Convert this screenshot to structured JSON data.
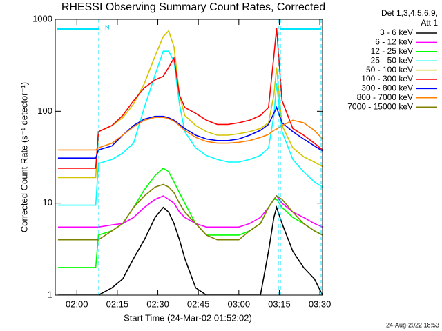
{
  "chart_data": {
    "type": "line",
    "title": "RHESSI Observing Summary Count Rates, Corrected",
    "xlabel": "Start Time (24-Mar-02 01:52:02)",
    "ylabel": "Corrected Count Rate (s⁻¹ detector⁻¹)",
    "legend_title": [
      "Det 1,3,4,5,6,9,",
      "Att 1"
    ],
    "night_label": "N",
    "footer": "24-Aug-2022 18:53",
    "log_y": true,
    "legend": "right",
    "x": [
      "01:53",
      "01:57",
      "02:01",
      "02:05",
      "02:07",
      "02:08",
      "02:13",
      "02:17",
      "02:21",
      "02:25",
      "02:29",
      "02:32",
      "02:34",
      "02:36",
      "02:38",
      "02:40",
      "02:44",
      "02:48",
      "02:52",
      "02:56",
      "03:00",
      "03:04",
      "03:08",
      "03:11",
      "03:13",
      "03:14",
      "03:16",
      "03:20",
      "03:24",
      "03:28",
      "03:31"
    ],
    "xlim": [
      "01:52",
      "03:31"
    ],
    "xticks": [
      "02:00",
      "02:15",
      "02:30",
      "02:45",
      "03:00",
      "03:15",
      "03:30"
    ],
    "ylim": [
      1,
      1000
    ],
    "yticks": [
      1,
      10,
      100,
      1000
    ],
    "series": [
      {
        "name": "3 - 6 keV",
        "color": "#000000",
        "values": [
          1,
          1,
          1,
          1,
          1,
          1,
          1.2,
          1.5,
          2.5,
          4,
          7,
          9,
          8,
          6,
          4,
          2.5,
          1.2,
          1,
          1,
          1,
          1,
          1,
          1,
          3,
          7,
          9,
          6,
          3,
          2,
          1.5,
          1
        ]
      },
      {
        "name": "6 - 12 keV",
        "color": "#ff00ff",
        "values": [
          5.5,
          5.5,
          5.5,
          5.5,
          5.5,
          5.5,
          5.8,
          6,
          7,
          9,
          11,
          12,
          11,
          10,
          8,
          7,
          6,
          5.5,
          5.5,
          5.5,
          5.5,
          6,
          7,
          9,
          11,
          12,
          10,
          8,
          7,
          6,
          5.5
        ]
      },
      {
        "name": "12 - 25 keV",
        "color": "#00ff00",
        "values": [
          2,
          2,
          2,
          2,
          2,
          4.5,
          5,
          6,
          9,
          14,
          20,
          24,
          22,
          17,
          13,
          10,
          6,
          4.5,
          4.5,
          4.5,
          4.5,
          5,
          6,
          9,
          11,
          11,
          9,
          7,
          6,
          5,
          4.5
        ]
      },
      {
        "name": "25 - 50 keV",
        "color": "#00ffff",
        "values": [
          9.5,
          9.5,
          9.5,
          9.5,
          9.5,
          27,
          30,
          35,
          45,
          110,
          250,
          450,
          450,
          350,
          120,
          60,
          40,
          33,
          30,
          28,
          28,
          30,
          33,
          40,
          90,
          200,
          60,
          30,
          22,
          17,
          15
        ]
      },
      {
        "name": "50 - 100 keV",
        "color": "#d4c400",
        "values": [
          19,
          19,
          19,
          19,
          19,
          60,
          70,
          85,
          120,
          200,
          400,
          650,
          750,
          500,
          150,
          90,
          70,
          60,
          55,
          55,
          57,
          60,
          65,
          75,
          150,
          300,
          70,
          40,
          32,
          28,
          25
        ]
      },
      {
        "name": "100 - 300 keV",
        "color": "#ff0000",
        "values": [
          24,
          24,
          24,
          24,
          24,
          60,
          70,
          90,
          130,
          180,
          220,
          240,
          300,
          380,
          150,
          110,
          95,
          80,
          72,
          72,
          75,
          80,
          90,
          110,
          400,
          800,
          130,
          65,
          55,
          45,
          38
        ]
      },
      {
        "name": "300 - 800 keV",
        "color": "#0000ff",
        "values": [
          31,
          31,
          31,
          31,
          31,
          38,
          42,
          55,
          70,
          82,
          88,
          88,
          85,
          80,
          72,
          65,
          55,
          50,
          48,
          48,
          50,
          55,
          62,
          72,
          95,
          110,
          75,
          60,
          50,
          42,
          37
        ]
      },
      {
        "name": "800 - 7000 keV",
        "color": "#ff8000",
        "values": [
          38,
          38,
          38,
          38,
          38,
          40,
          45,
          55,
          68,
          80,
          86,
          86,
          83,
          78,
          70,
          62,
          52,
          47,
          45,
          45,
          46,
          48,
          52,
          56,
          62,
          64,
          70,
          80,
          75,
          62,
          50
        ]
      },
      {
        "name": "7000 - 15000 keV",
        "color": "#808000",
        "values": [
          4,
          4,
          4,
          4,
          4,
          4,
          5,
          6,
          9,
          12,
          15,
          16,
          15,
          13,
          10,
          8,
          6,
          4.5,
          4,
          4,
          4,
          5,
          6,
          9,
          11,
          12,
          11,
          8,
          6,
          5,
          4.5
        ]
      }
    ]
  }
}
